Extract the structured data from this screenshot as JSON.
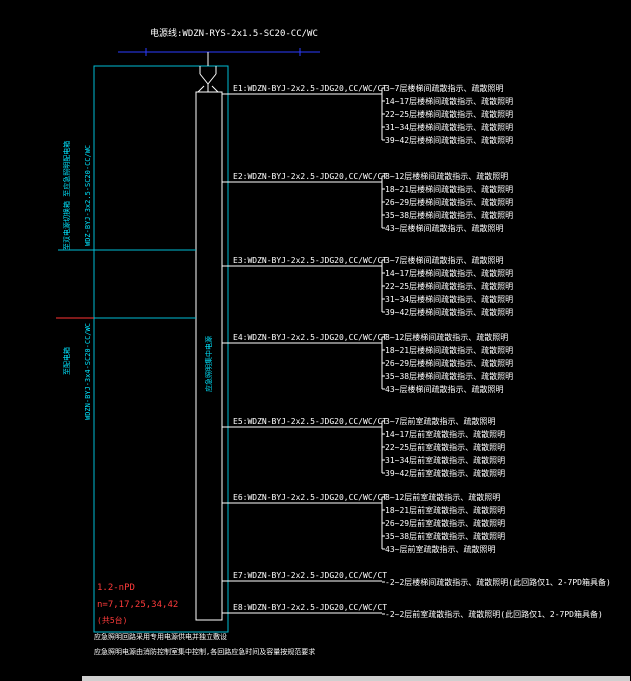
{
  "diagram": {
    "supply_cable": "WDZN-RYS-2x1.5-SC20-CC/WC",
    "supply_label": "电源线:WDZN-RYS-2x1.5-SC20-CC/WC",
    "left_cable_1": "WDZ-BYJ-3x2.5-SC20-CC/WC",
    "left_label_1": "至双电源切换箱 至应急照明配电箱",
    "left_cable_2": "WDZN-BYJ-3x4-SC20-CC/WC",
    "left_label_2": "至配电箱",
    "panel_label": "应急照明集中电源",
    "panel_id": "1.2-nPD",
    "panel_floors": "n=7,17,25,34,42",
    "panel_note": "(共5台)",
    "circuits": [
      {
        "id": "E1",
        "label": "E1:WDZN-BYJ-2x2.5-JDG20,CC/WC/CT",
        "dests": [
          "3~7层楼梯间疏散指示、疏散照明",
          "14~17层楼梯间疏散指示、疏散照明",
          "22~25层楼梯间疏散指示、疏散照明",
          "31~34层楼梯间疏散指示、疏散照明",
          "39~42层楼梯间疏散指示、疏散照明"
        ]
      },
      {
        "id": "E2",
        "label": "E2:WDZN-BYJ-2x2.5-JDG20,CC/WC/CT",
        "dests": [
          "8~12层楼梯间疏散指示、疏散照明",
          "18~21层楼梯间疏散指示、疏散照明",
          "26~29层楼梯间疏散指示、疏散照明",
          "35~38层楼梯间疏散指示、疏散照明",
          "43~层楼梯间疏散指示、疏散照明"
        ]
      },
      {
        "id": "E3",
        "label": "E3:WDZN-BYJ-2x2.5-JDG20,CC/WC/CT",
        "dests": [
          "3~7层楼梯间疏散指示、疏散照明",
          "14~17层楼梯间疏散指示、疏散照明",
          "22~25层楼梯间疏散指示、疏散照明",
          "31~34层楼梯间疏散指示、疏散照明",
          "39~42层楼梯间疏散指示、疏散照明"
        ]
      },
      {
        "id": "E4",
        "label": "E4:WDZN-BYJ-2x2.5-JDG20,CC/WC/CT",
        "dests": [
          "8~12层楼梯间疏散指示、疏散照明",
          "18~21层楼梯间疏散指示、疏散照明",
          "26~29层楼梯间疏散指示、疏散照明",
          "35~38层楼梯间疏散指示、疏散照明",
          "43~层楼梯间疏散指示、疏散照明"
        ]
      },
      {
        "id": "E5",
        "label": "E5:WDZN-BYJ-2x2.5-JDG20,CC/WC/CT",
        "dests": [
          "3~7层前室疏散指示、疏散照明",
          "14~17层前室疏散指示、疏散照明",
          "22~25层前室疏散指示、疏散照明",
          "31~34层前室疏散指示、疏散照明",
          "39~42层前室疏散指示、疏散照明"
        ]
      },
      {
        "id": "E6",
        "label": "E6:WDZN-BYJ-2x2.5-JDG20,CC/WC/CT",
        "dests": [
          "8~12层前室疏散指示、疏散照明",
          "18~21层前室疏散指示、疏散照明",
          "26~29层前室疏散指示、疏散照明",
          "35~38层前室疏散指示、疏散照明",
          "43~层前室疏散指示、疏散照明"
        ]
      },
      {
        "id": "E7",
        "label": "E7:WDZN-BYJ-2x2.5-JDG20,CC/WC/CT",
        "dests": [
          "-2~2层楼梯间疏散指示、疏散照明(此回路仅1、2-7PD箱具备)"
        ]
      },
      {
        "id": "E8",
        "label": "E8:WDZN-BYJ-2x2.5-JDG20,CC/WC/CT",
        "dests": [
          "-2~2层前室疏散指示、疏散照明(此回路仅1、2-7PD箱具备)"
        ]
      }
    ],
    "notes": [
      "应急照明回路采用专用电源供电并独立敷设",
      "应急照明电源由消防控制室集中控制,各回路应急时间及容量按规范要求"
    ]
  }
}
